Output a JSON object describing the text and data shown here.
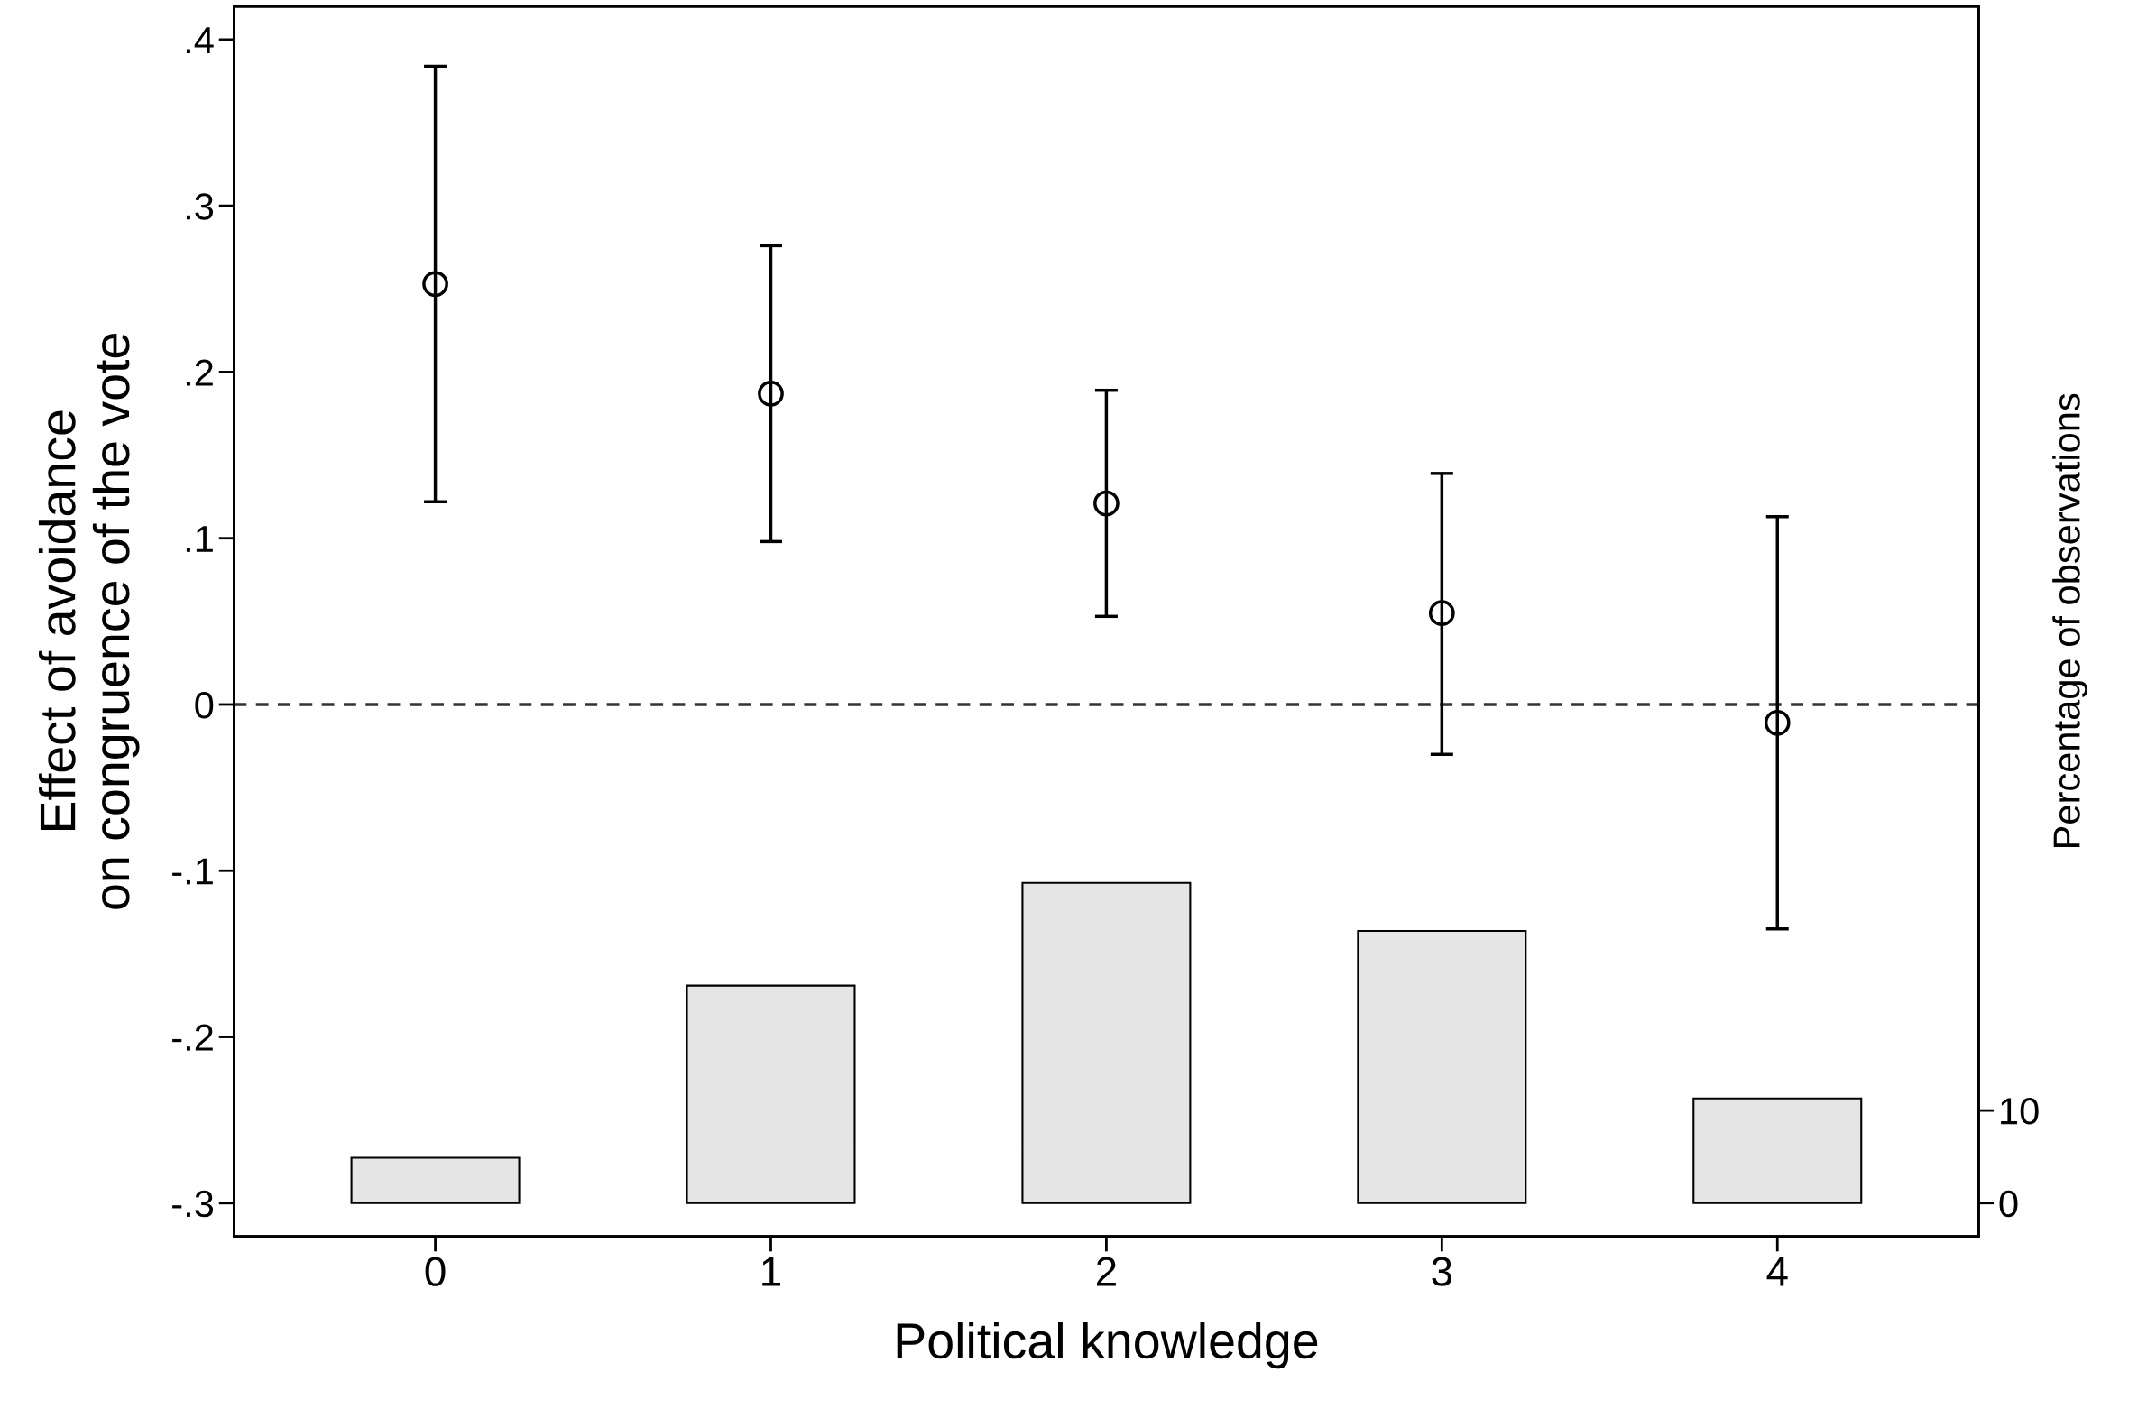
{
  "chart_data": {
    "type": "scatter",
    "xlabel": "Political knowledge",
    "ylabel": "Effect of avoidance\non congruence of the vote",
    "y2label": "Percentage of observations",
    "x": [
      0,
      1,
      2,
      3,
      4
    ],
    "series": [
      {
        "type": "bar",
        "axis": "y2",
        "color": "#e5e5e5",
        "values": [
          4.9,
          23.5,
          34.6,
          29.4,
          11.3
        ]
      },
      {
        "color": "#000000",
        "values": [
          0.253,
          0.187,
          0.121,
          0.055,
          -0.011
        ],
        "errors": [
          [
            0.122,
            0.384
          ],
          [
            0.098,
            0.276
          ],
          [
            0.053,
            0.189
          ],
          [
            -0.03,
            0.139
          ],
          [
            -0.135,
            0.113
          ]
        ]
      }
    ],
    "xlim": [
      -0.6,
      4.6
    ],
    "xticks": [
      0,
      1,
      2,
      3,
      4
    ],
    "ylim": [
      -0.32,
      0.42
    ],
    "yticks": [
      {
        "value": -0.3,
        "label": "-.3"
      },
      {
        "value": -0.2,
        "label": "-.2"
      },
      {
        "value": -0.1,
        "label": "-.1"
      },
      0,
      {
        "value": 0.1,
        "label": ".1"
      },
      {
        "value": 0.2,
        "label": ".2"
      },
      {
        "value": 0.3,
        "label": ".3"
      },
      {
        "value": 0.4,
        "label": ".4"
      }
    ],
    "y2lim": [
      -3.6,
      129.3
    ],
    "y2ticks": [
      0,
      10
    ],
    "ref_lines": [
      {
        "axis": "y",
        "value": 0,
        "line_style": "dashed",
        "color": "#333333"
      }
    ],
    "marker": "circle",
    "grid": false,
    "legend": false
  }
}
